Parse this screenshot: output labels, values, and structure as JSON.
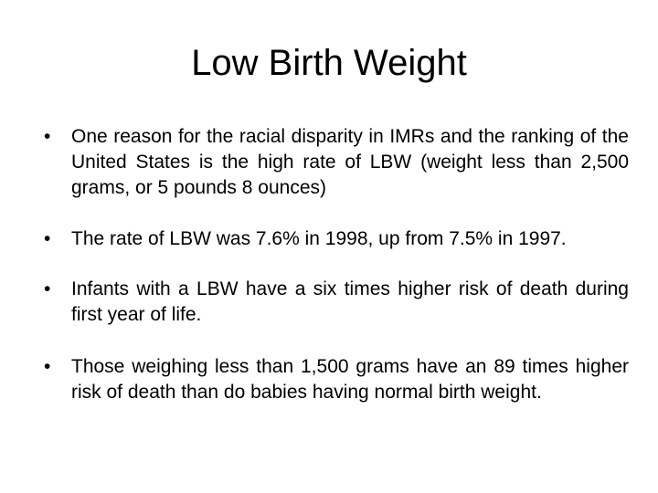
{
  "slide": {
    "title": "Low Birth Weight",
    "bullet_symbol": "•",
    "bullets": [
      "One reason for the racial disparity in IMRs and the ranking of the United States is the high rate of LBW (weight less than 2,500 grams, or 5 pounds 8 ounces)",
      "The rate of LBW was 7.6% in 1998, up from 7.5% in 1997.",
      "Infants with a LBW have a six times higher risk of death during first year of life.",
      "Those weighing less than 1,500 grams have an 89 times higher risk of death than do babies having normal birth weight."
    ]
  }
}
